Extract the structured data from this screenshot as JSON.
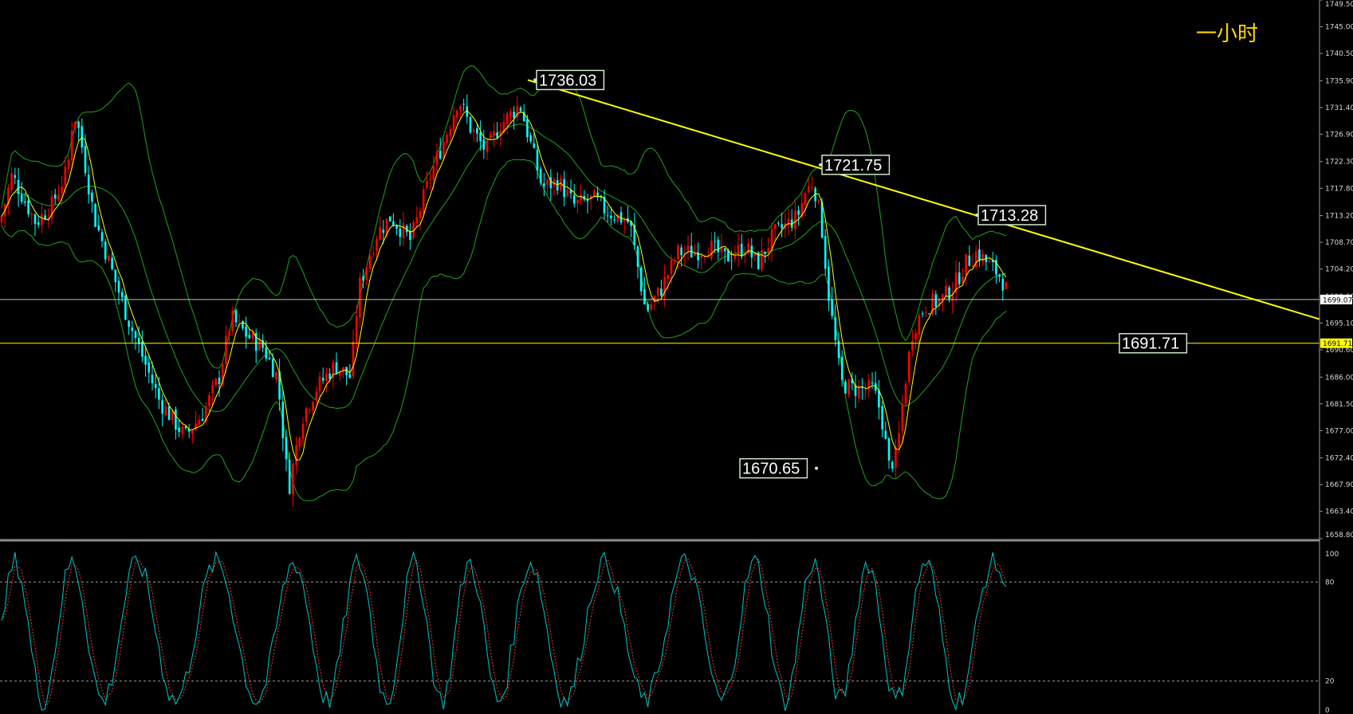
{
  "chart_data": {
    "type": "candlestick",
    "timeframe_label": "一小时",
    "price_axis": {
      "ticks": [
        "1749.50",
        "1745.00",
        "1740.50",
        "1735.90",
        "1731.40",
        "1726.90",
        "1722.30",
        "1717.80",
        "1713.20",
        "1708.70",
        "1704.20",
        "1699.60",
        "1695.10",
        "1690.60",
        "1686.00",
        "1681.50",
        "1677.00",
        "1672.40",
        "1667.90",
        "1663.40",
        "1658.80"
      ],
      "range": [
        1658.8,
        1749.5
      ]
    },
    "current_price_label": "1699.07",
    "horizontal_level": {
      "value": 1691.71,
      "label": "1691.71",
      "axis_label": "1691.71"
    },
    "annotations": [
      {
        "label": "1736.03",
        "value": 1736.03
      },
      {
        "label": "1721.75",
        "value": 1721.75
      },
      {
        "label": "1713.28",
        "value": 1713.28
      },
      {
        "label": "1670.65",
        "value": 1670.65
      }
    ],
    "trendline": {
      "from": 1736.03,
      "through": 1713.28
    },
    "stochastic": {
      "ticks": [
        "100",
        "80",
        "20",
        "0"
      ],
      "levels": [
        80,
        20
      ],
      "range": [
        0,
        100
      ]
    },
    "colors": {
      "up": "#ff0000",
      "down": "#00ffff",
      "bands": "#1fa31f",
      "ma": "#ffff00",
      "trendline": "#ffff00",
      "level": "#ffff00",
      "stoch_main": "#00c8c8",
      "stoch_signal": "#ff3333",
      "label_bg": "#cfe6c8",
      "label_border": "#2f8f2f"
    }
  }
}
